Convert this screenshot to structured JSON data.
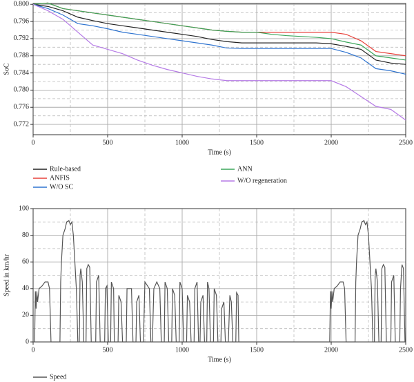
{
  "chart_data": [
    {
      "type": "line",
      "xlabel": "Time (s)",
      "ylabel": "SoC",
      "x": [
        0,
        100,
        200,
        300,
        400,
        500,
        600,
        700,
        800,
        900,
        1000,
        1100,
        1200,
        1300,
        1400,
        1500,
        1600,
        1700,
        1800,
        1900,
        2000,
        2100,
        2200,
        2300,
        2400,
        2500
      ],
      "series": [
        {
          "name": "Rule-based",
          "color": "#222222",
          "values": [
            0.8,
            0.7995,
            0.7985,
            0.797,
            0.7962,
            0.7955,
            0.795,
            0.7945,
            0.794,
            0.7935,
            0.793,
            0.7925,
            0.7918,
            0.7913,
            0.791,
            0.791,
            0.791,
            0.791,
            0.791,
            0.791,
            0.7908,
            0.7902,
            0.7895,
            0.787,
            0.7863,
            0.786
          ]
        },
        {
          "name": "ANFIS",
          "color": "#e8403a",
          "values": [
            0.8,
            0.8003,
            0.799,
            0.7985,
            0.798,
            0.7975,
            0.797,
            0.7965,
            0.796,
            0.7955,
            0.795,
            0.7945,
            0.794,
            0.7937,
            0.7935,
            0.7935,
            0.7935,
            0.7935,
            0.7935,
            0.7935,
            0.7935,
            0.793,
            0.7915,
            0.789,
            0.7885,
            0.788
          ]
        },
        {
          "name": "W/O SC",
          "color": "#2f74d0",
          "values": [
            0.8,
            0.799,
            0.7975,
            0.7955,
            0.795,
            0.7943,
            0.7935,
            0.793,
            0.7925,
            0.792,
            0.7915,
            0.791,
            0.7905,
            0.7898,
            0.7897,
            0.7897,
            0.7897,
            0.7897,
            0.7897,
            0.7897,
            0.7897,
            0.7888,
            0.7875,
            0.785,
            0.7845,
            0.7837
          ]
        },
        {
          "name": "ANN",
          "color": "#3aa55a",
          "values": [
            0.8,
            0.8003,
            0.799,
            0.7985,
            0.798,
            0.7975,
            0.797,
            0.7965,
            0.796,
            0.7955,
            0.795,
            0.7945,
            0.794,
            0.7937,
            0.7935,
            0.7935,
            0.793,
            0.7927,
            0.7925,
            0.7923,
            0.792,
            0.7912,
            0.7905,
            0.788,
            0.7875,
            0.787
          ]
        },
        {
          "name": "W/O regeneration",
          "color": "#b57ae6",
          "values": [
            0.8,
            0.7985,
            0.7965,
            0.7935,
            0.7905,
            0.7895,
            0.7885,
            0.787,
            0.7858,
            0.7848,
            0.784,
            0.7832,
            0.7826,
            0.7822,
            0.7822,
            0.7822,
            0.7822,
            0.7822,
            0.7822,
            0.7822,
            0.7822,
            0.7808,
            0.7785,
            0.7762,
            0.7755,
            0.773
          ]
        }
      ],
      "xlim": [
        0,
        2500
      ],
      "xticks": [
        0,
        500,
        1000,
        1500,
        2000,
        2500
      ],
      "xminor": [
        250,
        750,
        1250,
        1750,
        2250
      ],
      "ylim": [
        0.7696,
        0.8002
      ],
      "yticks": [
        {
          "value": 0.772,
          "label": "0.772"
        },
        {
          "value": 0.776,
          "label": "0.776"
        },
        {
          "value": 0.78,
          "label": "0.780"
        },
        {
          "value": 0.784,
          "label": "0.784"
        },
        {
          "value": 0.788,
          "label": "0.788"
        },
        {
          "value": 0.792,
          "label": "0.792"
        },
        {
          "value": 0.796,
          "label": "0.796"
        },
        {
          "value": 0.8,
          "label": "0.800"
        }
      ],
      "yminor": [
        0.774,
        0.778,
        0.782,
        0.786,
        0.79,
        0.794,
        0.798
      ],
      "grid": true
    },
    {
      "type": "line",
      "xlabel": "Time (s)",
      "ylabel": "Speed in km/hr",
      "x": [
        0,
        10,
        15,
        20,
        25,
        30,
        40,
        60,
        80,
        100,
        110,
        120,
        180,
        185,
        190,
        200,
        215,
        225,
        240,
        250,
        260,
        270,
        280,
        290,
        300,
        310,
        315,
        320,
        330,
        340,
        355,
        360,
        370,
        380,
        390,
        420,
        425,
        440,
        450,
        480,
        485,
        495,
        505,
        520,
        525,
        540,
        545,
        570,
        575,
        590,
        600,
        625,
        630,
        660,
        670,
        690,
        695,
        710,
        720,
        740,
        750,
        780,
        790,
        800,
        810,
        830,
        850,
        860,
        880,
        885,
        900,
        910,
        930,
        935,
        950,
        960,
        980,
        985,
        1000,
        1010,
        1030,
        1035,
        1050,
        1060,
        1080,
        1085,
        1100,
        1110,
        1120,
        1125,
        1140,
        1150,
        1165,
        1170,
        1180,
        1190,
        1210,
        1215,
        1230,
        1240,
        1260,
        1265,
        1280,
        1290,
        1310,
        1320,
        1330,
        1340,
        1360,
        1365,
        1375,
        1380,
        1990,
        1995,
        2000,
        2005,
        2010,
        2020,
        2040,
        2060,
        2080,
        2090,
        2100,
        2160,
        2165,
        2170,
        2180,
        2195,
        2205,
        2220,
        2230,
        2240,
        2250,
        2260,
        2270,
        2280,
        2290,
        2295,
        2300,
        2310,
        2320,
        2335,
        2340,
        2350,
        2360,
        2370,
        2400,
        2405,
        2420,
        2430,
        2460,
        2465,
        2475,
        2485,
        2495,
        2500
      ],
      "series": [
        {
          "name": "Speed",
          "color": "#555555",
          "values": [
            0,
            0,
            38,
            25,
            38,
            30,
            40,
            42,
            45,
            45,
            40,
            0,
            0,
            45,
            60,
            80,
            85,
            90,
            91,
            88,
            90,
            80,
            60,
            40,
            0,
            0,
            50,
            55,
            45,
            0,
            0,
            55,
            58,
            56,
            0,
            0,
            45,
            50,
            0,
            0,
            40,
            42,
            0,
            0,
            45,
            40,
            0,
            0,
            35,
            30,
            0,
            0,
            40,
            40,
            0,
            0,
            30,
            35,
            0,
            0,
            45,
            40,
            0,
            0,
            40,
            45,
            40,
            0,
            0,
            45,
            40,
            0,
            0,
            40,
            35,
            0,
            0,
            45,
            40,
            0,
            0,
            35,
            30,
            0,
            0,
            40,
            45,
            0,
            0,
            30,
            35,
            0,
            0,
            45,
            40,
            0,
            0,
            40,
            35,
            0,
            0,
            25,
            30,
            0,
            0,
            35,
            30,
            0,
            0,
            37,
            35,
            0,
            0,
            38,
            25,
            38,
            30,
            40,
            42,
            45,
            45,
            40,
            0,
            0,
            45,
            60,
            80,
            85,
            90,
            91,
            88,
            90,
            80,
            60,
            40,
            0,
            0,
            50,
            55,
            45,
            0,
            0,
            55,
            58,
            56,
            0,
            0,
            45,
            50,
            0,
            0,
            40,
            58,
            55,
            0,
            0
          ]
        }
      ],
      "xlim": [
        0,
        2500
      ],
      "xticks": [
        0,
        500,
        1000,
        1500,
        2000,
        2500
      ],
      "xminor": [
        250,
        750,
        1250,
        1750,
        2250
      ],
      "ylim": [
        0,
        100
      ],
      "yticks": [
        0,
        20,
        40,
        60,
        80,
        100
      ],
      "yminor": [
        10,
        30,
        50,
        70,
        90
      ],
      "grid": true
    }
  ]
}
